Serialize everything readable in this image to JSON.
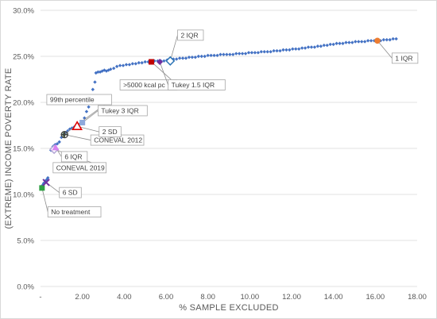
{
  "chart_data": {
    "type": "scatter",
    "xlabel": "% SAMPLE EXCLUDED",
    "ylabel": "(EXTREME) INCOME POVERTY RATE",
    "xlim": [
      0,
      18
    ],
    "ylim": [
      0,
      30
    ],
    "x_ticks": [
      0,
      2,
      4,
      6,
      8,
      10,
      12,
      14,
      16,
      18
    ],
    "x_tick_labels": [
      "-",
      "2.00",
      "4.00",
      "6.00",
      "8.00",
      "10.00",
      "12.00",
      "14.00",
      "16.00",
      "18.00"
    ],
    "y_ticks": [
      0,
      5,
      10,
      15,
      20,
      25,
      30
    ],
    "y_tick_labels": [
      "0.0%",
      "5.0%",
      "10.0%",
      "15.0%",
      "20.0%",
      "25.0%",
      "30.0%"
    ],
    "grid": "horizontal",
    "series": [
      {
        "color": "#4472c4",
        "values": [
          [
            0.05,
            10.8
          ],
          [
            0.1,
            11.0
          ],
          [
            0.15,
            11.2
          ],
          [
            0.2,
            11.3
          ],
          [
            0.25,
            11.5
          ],
          [
            0.3,
            11.6
          ],
          [
            0.35,
            11.8
          ],
          [
            0.5,
            14.8
          ],
          [
            0.55,
            15.0
          ],
          [
            0.6,
            15.2
          ],
          [
            0.65,
            15.3
          ],
          [
            0.7,
            15.4
          ],
          [
            0.8,
            15.5
          ],
          [
            0.9,
            15.7
          ],
          [
            1.0,
            16.2
          ],
          [
            1.1,
            16.5
          ],
          [
            1.2,
            16.7
          ],
          [
            1.3,
            16.9
          ],
          [
            1.4,
            17.1
          ],
          [
            1.5,
            17.2
          ],
          [
            1.6,
            17.3
          ],
          [
            1.7,
            17.5
          ],
          [
            1.8,
            17.6
          ],
          [
            1.9,
            17.7
          ],
          [
            2.0,
            17.9
          ],
          [
            2.1,
            18.3
          ],
          [
            2.2,
            19.0
          ],
          [
            2.3,
            19.5
          ],
          [
            2.4,
            20.6
          ],
          [
            2.5,
            21.4
          ],
          [
            2.6,
            22.2
          ],
          [
            2.65,
            23.2
          ],
          [
            2.75,
            23.3
          ],
          [
            2.85,
            23.3
          ],
          [
            2.95,
            23.4
          ],
          [
            3.05,
            23.5
          ],
          [
            3.15,
            23.4
          ],
          [
            3.25,
            23.5
          ],
          [
            3.35,
            23.6
          ],
          [
            3.5,
            23.7
          ],
          [
            3.65,
            23.9
          ],
          [
            3.8,
            24.0
          ],
          [
            3.95,
            24.0
          ],
          [
            4.1,
            24.1
          ],
          [
            4.25,
            24.1
          ],
          [
            4.4,
            24.2
          ],
          [
            4.55,
            24.2
          ],
          [
            4.7,
            24.3
          ],
          [
            4.85,
            24.3
          ],
          [
            5.0,
            24.4
          ],
          [
            5.15,
            24.4
          ],
          [
            5.3,
            24.4
          ],
          [
            5.45,
            24.5
          ],
          [
            5.6,
            24.5
          ],
          [
            5.75,
            24.5
          ],
          [
            5.9,
            24.5
          ],
          [
            6.05,
            24.6
          ],
          [
            6.2,
            24.6
          ],
          [
            6.35,
            24.7
          ],
          [
            6.5,
            24.7
          ],
          [
            6.65,
            24.8
          ],
          [
            6.8,
            24.8
          ],
          [
            6.95,
            24.8
          ],
          [
            7.1,
            24.9
          ],
          [
            7.25,
            24.9
          ],
          [
            7.4,
            24.9
          ],
          [
            7.55,
            25.0
          ],
          [
            7.7,
            25.0
          ],
          [
            7.85,
            25.0
          ],
          [
            8.0,
            25.1
          ],
          [
            8.15,
            25.1
          ],
          [
            8.3,
            25.1
          ],
          [
            8.45,
            25.1
          ],
          [
            8.6,
            25.2
          ],
          [
            8.75,
            25.2
          ],
          [
            8.9,
            25.2
          ],
          [
            9.05,
            25.2
          ],
          [
            9.2,
            25.2
          ],
          [
            9.35,
            25.3
          ],
          [
            9.5,
            25.3
          ],
          [
            9.65,
            25.3
          ],
          [
            9.8,
            25.3
          ],
          [
            9.95,
            25.4
          ],
          [
            10.1,
            25.4
          ],
          [
            10.25,
            25.4
          ],
          [
            10.4,
            25.4
          ],
          [
            10.55,
            25.5
          ],
          [
            10.7,
            25.5
          ],
          [
            10.85,
            25.5
          ],
          [
            11.0,
            25.5
          ],
          [
            11.15,
            25.6
          ],
          [
            11.3,
            25.6
          ],
          [
            11.45,
            25.6
          ],
          [
            11.6,
            25.7
          ],
          [
            11.75,
            25.7
          ],
          [
            11.9,
            25.7
          ],
          [
            12.05,
            25.8
          ],
          [
            12.2,
            25.8
          ],
          [
            12.35,
            25.8
          ],
          [
            12.5,
            25.9
          ],
          [
            12.65,
            25.9
          ],
          [
            12.8,
            26.0
          ],
          [
            12.95,
            26.0
          ],
          [
            13.1,
            26.0
          ],
          [
            13.25,
            26.1
          ],
          [
            13.4,
            26.1
          ],
          [
            13.55,
            26.2
          ],
          [
            13.7,
            26.2
          ],
          [
            13.85,
            26.3
          ],
          [
            14.0,
            26.3
          ],
          [
            14.15,
            26.4
          ],
          [
            14.3,
            26.4
          ],
          [
            14.45,
            26.4
          ],
          [
            14.6,
            26.5
          ],
          [
            14.75,
            26.5
          ],
          [
            14.9,
            26.5
          ],
          [
            15.05,
            26.6
          ],
          [
            15.2,
            26.6
          ],
          [
            15.35,
            26.6
          ],
          [
            15.5,
            26.6
          ],
          [
            15.65,
            26.7
          ],
          [
            15.8,
            26.7
          ],
          [
            15.95,
            26.7
          ],
          [
            16.1,
            26.7
          ],
          [
            16.25,
            26.7
          ],
          [
            16.4,
            26.8
          ],
          [
            16.55,
            26.8
          ],
          [
            16.7,
            26.8
          ],
          [
            16.85,
            26.9
          ],
          [
            17.0,
            26.9
          ]
        ]
      }
    ],
    "highlighted": [
      {
        "label": "No treatment",
        "x": 0.07,
        "y": 10.7,
        "marker": "square",
        "color": "#2ea043",
        "lx": 0.35,
        "ly": 8.1,
        "anchor": "start"
      },
      {
        "label": "6 SD",
        "x": 0.27,
        "y": 11.3,
        "marker": "x",
        "color": "#7030a0",
        "lx": 0.9,
        "ly": 10.2,
        "anchor": "start"
      },
      {
        "label": "CONEVAL 2019",
        "x": 0.65,
        "y": 14.9,
        "marker": "diamond-open",
        "color": "#b4a7d6",
        "lx": 0.6,
        "ly": 12.9,
        "anchor": "start"
      },
      {
        "label": "6 IQR",
        "x": 0.72,
        "y": 15.1,
        "marker": "triangle",
        "color": "#d883f0",
        "lx": 1.0,
        "ly": 14.1,
        "anchor": "start"
      },
      {
        "label": "99th percentile",
        "x": 1.12,
        "y": 16.5,
        "marker": "cross",
        "color": "#375623",
        "lx": 0.3,
        "ly": 20.3,
        "anchor": "start"
      },
      {
        "label": "CONEVAL 2012",
        "x": 1.15,
        "y": 16.5,
        "marker": "circle-open",
        "color": "#404040",
        "lx": 2.4,
        "ly": 15.9,
        "anchor": "start"
      },
      {
        "label": "2 SD",
        "x": 1.75,
        "y": 17.4,
        "marker": "triangle-open",
        "color": "#e00000",
        "lx": 2.8,
        "ly": 16.8,
        "anchor": "start"
      },
      {
        "label": "Tukey 3 IQR",
        "x": 2.0,
        "y": 17.8,
        "marker": "square",
        "color": "#8ea9db",
        "lx": 2.75,
        "ly": 19.1,
        "anchor": "start"
      },
      {
        "label": ">5000 kcal pc",
        "x": 5.3,
        "y": 24.4,
        "marker": "square",
        "color": "#c00000",
        "lx": 3.8,
        "ly": 21.9,
        "anchor": "start"
      },
      {
        "label": "Tukey 1.5 IQR",
        "x": 5.7,
        "y": 24.4,
        "marker": "diamond",
        "color": "#7030a0",
        "lx": 6.1,
        "ly": 21.9,
        "anchor": "start"
      },
      {
        "label": "2 IQR",
        "x": 6.2,
        "y": 24.5,
        "marker": "diamond-open",
        "color": "#2e75b6",
        "lx": 6.55,
        "ly": 27.3,
        "anchor": "start"
      },
      {
        "label": "1 IQR",
        "x": 16.1,
        "y": 26.7,
        "marker": "circle",
        "color": "#ed7d31",
        "lx": 16.8,
        "ly": 24.8,
        "anchor": "start"
      }
    ]
  }
}
